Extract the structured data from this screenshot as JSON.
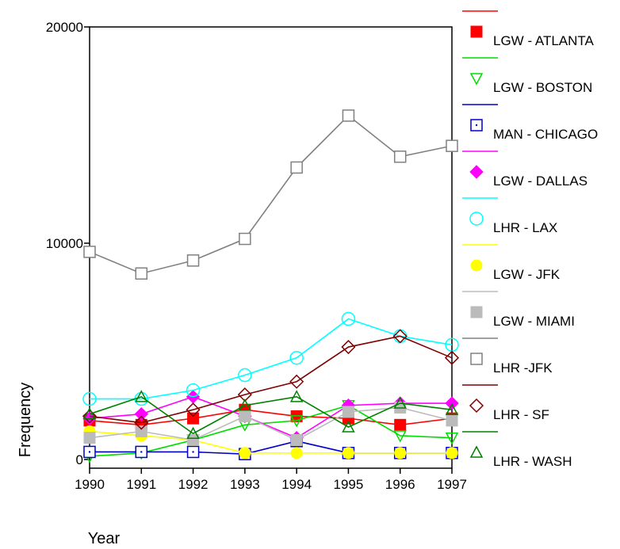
{
  "chart_data": {
    "type": "line",
    "xlabel": "Year",
    "ylabel": "Frequency",
    "x": [
      1990,
      1991,
      1992,
      1993,
      1994,
      1995,
      1996,
      1997
    ],
    "x_ticks": [
      "1990",
      "1991",
      "1992",
      "1993",
      "1994",
      "1995",
      "1996",
      "1997"
    ],
    "y_ticks": [
      "0",
      "10000",
      "20000"
    ],
    "ylim": [
      0,
      20000
    ],
    "grid": false,
    "legend_position": "right",
    "series": [
      {
        "name": "LGW - ATLANTA",
        "color": "#ff0000",
        "marker": "filled-square",
        "values": [
          1800,
          1600,
          1900,
          2300,
          2000,
          1900,
          1600,
          1900
        ]
      },
      {
        "name": "LGW - BOSTON",
        "color": "#00dd00",
        "marker": "triangle-down",
        "values": [
          150,
          300,
          900,
          1600,
          1800,
          2500,
          1100,
          1000
        ]
      },
      {
        "name": "MAN - CHICAGO",
        "color": "#0000cc",
        "marker": "square-dot",
        "values": [
          350,
          350,
          350,
          250,
          850,
          300,
          300,
          300
        ]
      },
      {
        "name": "LGW - DALLAS",
        "color": "#ff00ff",
        "marker": "filled-diamond",
        "values": [
          1900,
          2100,
          2900,
          2000,
          1000,
          2500,
          2600,
          2600
        ]
      },
      {
        "name": "LHR - LAX",
        "color": "#00ffff",
        "marker": "circle",
        "values": [
          2800,
          2800,
          3200,
          3900,
          4700,
          6500,
          5700,
          5300
        ]
      },
      {
        "name": "LGW - JFK",
        "color": "#ffff00",
        "marker": "filled-circle",
        "values": [
          1300,
          1100,
          900,
          300,
          300,
          300,
          300,
          300
        ]
      },
      {
        "name": "LGW - MIAMI",
        "color": "#bbbbbb",
        "marker": "filled-square",
        "values": [
          1000,
          1300,
          900,
          2000,
          900,
          2200,
          2400,
          1800
        ]
      },
      {
        "name": "LHR -JFK",
        "color": "#808080",
        "marker": "square",
        "values": [
          9600,
          8600,
          9200,
          10200,
          13500,
          15900,
          14000,
          14500
        ]
      },
      {
        "name": "LHR - SF",
        "color": "#800000",
        "marker": "diamond",
        "values": [
          2000,
          1700,
          2300,
          3000,
          3600,
          5200,
          5700,
          4700
        ]
      },
      {
        "name": "LHR - WASH",
        "color": "#008000",
        "marker": "triangle-up",
        "values": [
          2100,
          2900,
          1200,
          2500,
          2900,
          1500,
          2600,
          2300
        ]
      }
    ]
  }
}
